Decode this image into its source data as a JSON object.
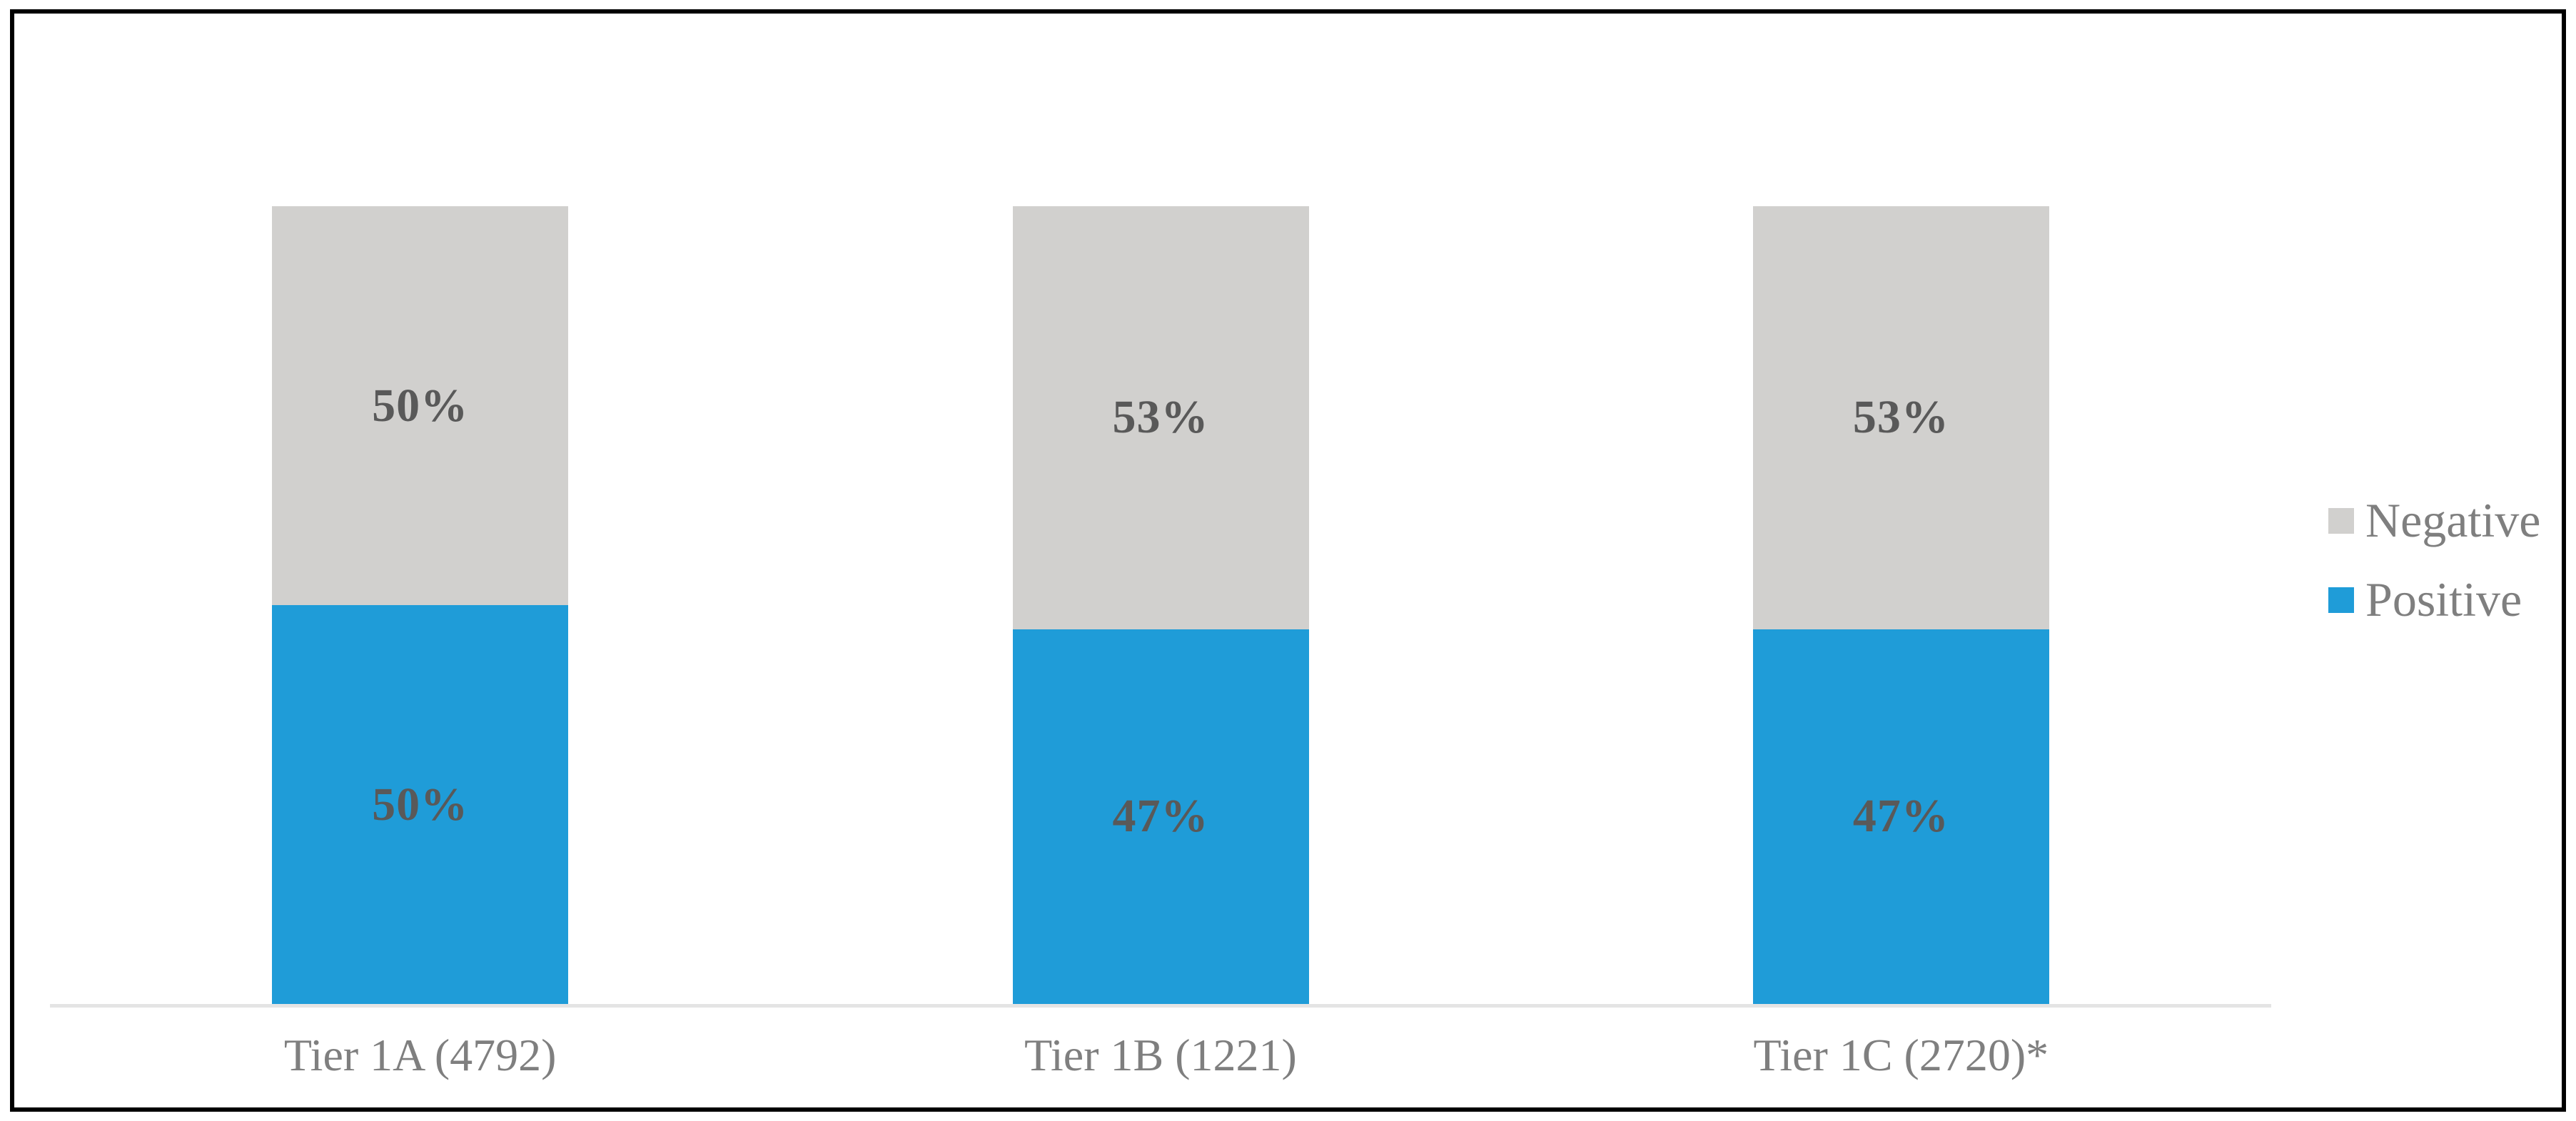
{
  "chart_data": {
    "type": "bar",
    "subtype": "stacked-100-percent-column",
    "title": "",
    "xlabel": "",
    "ylabel": "",
    "grid": false,
    "ylim": [
      0,
      100
    ],
    "legend_position": "right",
    "stack_order_top_to_bottom": [
      "Negative",
      "Positive"
    ],
    "categories": [
      "Tier 1A (4792)",
      "Tier 1B (1221)",
      "Tier 1C (2720)*"
    ],
    "series": [
      {
        "name": "Positive",
        "color": "#1F9CD8",
        "values": [
          50,
          47,
          47
        ]
      },
      {
        "name": "Negative",
        "color": "#D1D0CE",
        "values": [
          50,
          53,
          53
        ]
      }
    ],
    "display_labels": {
      "Negative": [
        "50%",
        "53%",
        "53%"
      ],
      "Positive": [
        "50%",
        "47%",
        "47%"
      ]
    }
  },
  "legend": {
    "items": [
      {
        "label": "Negative",
        "color": "#D1D0CE"
      },
      {
        "label": "Positive",
        "color": "#1F9CD8"
      }
    ]
  },
  "colors": {
    "positive": "#1F9CD8",
    "negative": "#D1D0CE",
    "data_label": "#595959",
    "category_label": "#7F7F7F",
    "legend_label": "#7F7F7F",
    "axis_line": "#E4E4E4",
    "frame_border": "#000000",
    "background": "#FFFFFF"
  }
}
